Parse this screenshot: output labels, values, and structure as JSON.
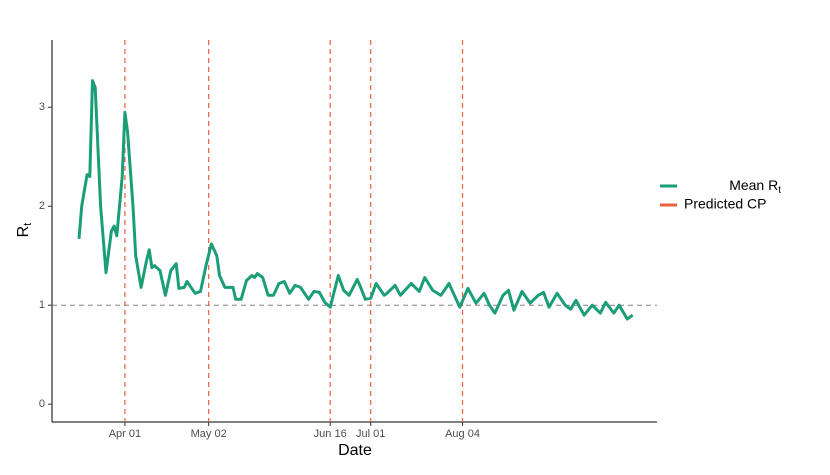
{
  "chart_data": {
    "type": "line",
    "x_label": "Date",
    "y_label": {
      "text": "R",
      "subscript": "t"
    },
    "x": [
      "Mar 15",
      "Mar 16",
      "Mar 18",
      "Mar 19",
      "Mar 20",
      "Mar 21",
      "Mar 23",
      "Mar 25",
      "Mar 27",
      "Mar 28",
      "Mar 29",
      "Mar 31",
      "Apr 01",
      "Apr 02",
      "Apr 04",
      "Apr 05",
      "Apr 07",
      "Apr 09",
      "Apr 10",
      "Apr 11",
      "Apr 12",
      "Apr 14",
      "Apr 16",
      "Apr 18",
      "Apr 20",
      "Apr 21",
      "Apr 23",
      "Apr 24",
      "Apr 27",
      "Apr 29",
      "May 01",
      "May 03",
      "May 05",
      "May 06",
      "May 08",
      "May 11",
      "May 12",
      "May 14",
      "May 16",
      "May 18",
      "May 19",
      "May 20",
      "May 22",
      "May 24",
      "May 26",
      "May 28",
      "May 30",
      "Jun 01",
      "Jun 03",
      "Jun 05",
      "Jun 08",
      "Jun 10",
      "Jun 12",
      "Jun 14",
      "Jun 16",
      "Jun 19",
      "Jun 21",
      "Jun 23",
      "Jun 26",
      "Jun 27",
      "Jun 29",
      "Jul 01",
      "Jul 03",
      "Jul 06",
      "Jul 07",
      "Jul 10",
      "Jul 12",
      "Jul 16",
      "Jul 19",
      "Jul 21",
      "Jul 24",
      "Jul 27",
      "Jul 30",
      "Aug 03",
      "Aug 06",
      "Aug 09",
      "Aug 12",
      "Aug 14",
      "Aug 16",
      "Aug 19",
      "Aug 21",
      "Aug 23",
      "Aug 26",
      "Aug 29",
      "Sep 01",
      "Sep 03",
      "Sep 05",
      "Sep 08",
      "Sep 11",
      "Sep 13",
      "Sep 15",
      "Sep 18",
      "Sep 21",
      "Sep 24",
      "Sep 26",
      "Sep 29",
      "Oct 01",
      "Oct 04",
      "Oct 06"
    ],
    "series": [
      {
        "name": "Mean R",
        "name_subscript": "t",
        "color": "#1b9e77",
        "values": [
          1.67,
          2.0,
          2.32,
          2.3,
          3.27,
          3.2,
          2.0,
          1.33,
          1.75,
          1.8,
          1.7,
          2.3,
          2.95,
          2.75,
          2.0,
          1.5,
          1.18,
          1.45,
          1.56,
          1.38,
          1.4,
          1.35,
          1.1,
          1.35,
          1.42,
          1.17,
          1.18,
          1.24,
          1.12,
          1.14,
          1.4,
          1.62,
          1.5,
          1.3,
          1.18,
          1.18,
          1.06,
          1.06,
          1.25,
          1.3,
          1.28,
          1.32,
          1.28,
          1.1,
          1.1,
          1.22,
          1.24,
          1.12,
          1.2,
          1.18,
          1.06,
          1.14,
          1.13,
          1.03,
          0.98,
          1.3,
          1.15,
          1.1,
          1.26,
          1.2,
          1.06,
          1.07,
          1.22,
          1.1,
          1.12,
          1.2,
          1.1,
          1.22,
          1.14,
          1.28,
          1.15,
          1.1,
          1.22,
          0.98,
          1.17,
          1.02,
          1.12,
          1.0,
          0.92,
          1.1,
          1.15,
          0.95,
          1.14,
          1.02,
          1.1,
          1.13,
          0.98,
          1.12,
          1.0,
          0.96,
          1.05,
          0.9,
          1.0,
          0.92,
          1.03,
          0.92,
          1.0,
          0.86,
          0.9
        ]
      }
    ],
    "change_points": {
      "name": "Predicted CP",
      "color": "#e8603c",
      "x": [
        "Apr 01",
        "May 02",
        "Jun 16",
        "Jul 01",
        "Aug 04"
      ]
    },
    "reference_line": 1,
    "xlim": [
      "Mar 05",
      "Oct 15"
    ],
    "xticks": [
      "Apr 01",
      "May 02",
      "Jun 16",
      "Jul 01",
      "Aug 04"
    ],
    "ylim": [
      -0.18,
      3.68
    ],
    "yticks": [
      0,
      1,
      2,
      3
    ],
    "legend": "right"
  }
}
